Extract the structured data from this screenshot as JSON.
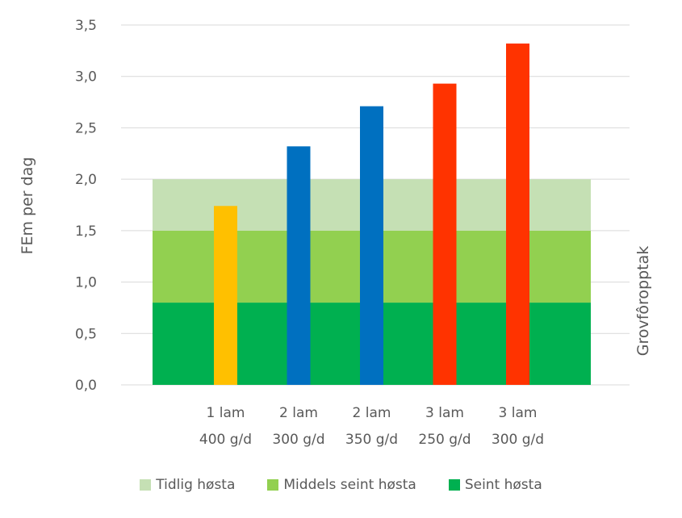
{
  "chart_data": {
    "type": "bar",
    "categories": [
      [
        "1 lam",
        "400 g/d"
      ],
      [
        "2 lam",
        "300 g/d"
      ],
      [
        "2 lam",
        "350 g/d"
      ],
      [
        "3 lam",
        "250 g/d"
      ],
      [
        "3 lam",
        "300 g/d"
      ]
    ],
    "values": [
      1.74,
      2.32,
      2.71,
      2.93,
      3.32
    ],
    "bar_colors": [
      "#FFC000",
      "#0070C0",
      "#0070C0",
      "#FF3300",
      "#FF3300"
    ],
    "ylabel": "FEm per dag",
    "secondary_ylabel": "Grovfôropptak",
    "ylim": [
      0,
      3.5
    ],
    "yticks": [
      "0,0",
      "0,5",
      "1,0",
      "1,5",
      "2,0",
      "2,5",
      "3,0",
      "3,5"
    ],
    "ytick_values": [
      0,
      0.5,
      1.0,
      1.5,
      2.0,
      2.5,
      3.0,
      3.5
    ],
    "grid": true,
    "legend_position": "bottom",
    "bands": [
      {
        "name": "Seint høsta",
        "from": 0,
        "to": 0.8,
        "color": "#00B050"
      },
      {
        "name": "Middels seint høsta",
        "from": 0.8,
        "to": 1.5,
        "color": "#92D050"
      },
      {
        "name": "Tidlig høsta",
        "from": 1.5,
        "to": 2.0,
        "color": "#C5E0B4"
      }
    ],
    "legend": [
      {
        "label": "Tidlig høsta",
        "color": "#C5E0B4"
      },
      {
        "label": "Middels seint høsta",
        "color": "#92D050"
      },
      {
        "label": "Seint høsta",
        "color": "#00B050"
      }
    ]
  }
}
